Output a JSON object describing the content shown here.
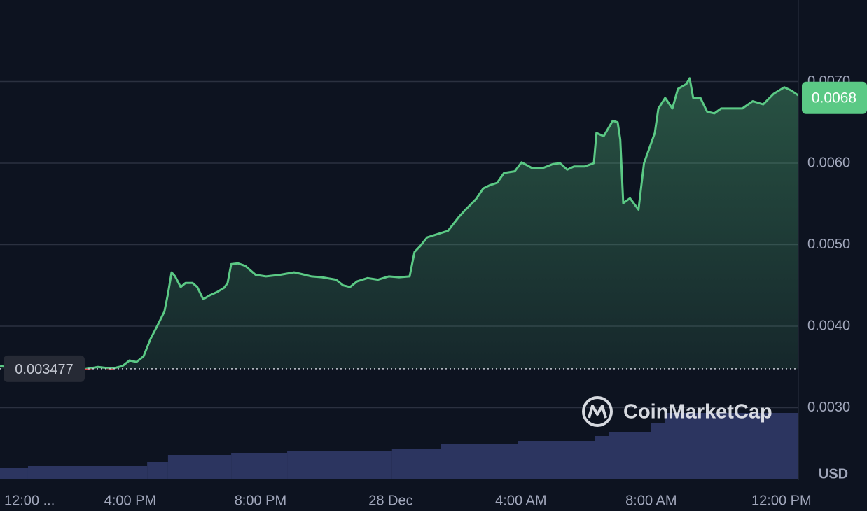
{
  "chart_data": {
    "type": "line",
    "color": "#5bc985",
    "color_down": "#ea3943",
    "x": [
      0,
      0.43,
      0.86,
      1.29,
      1.72,
      2.15,
      2.58,
      3.01,
      3.44,
      3.76,
      3.98,
      4.19,
      4.41,
      4.62,
      4.84,
      5.05,
      5.16,
      5.27,
      5.38,
      5.55,
      5.7,
      5.91,
      6.06,
      6.24,
      6.45,
      6.67,
      6.88,
      6.99,
      7.1,
      7.31,
      7.53,
      7.85,
      8.17,
      8.6,
      9.03,
      9.25,
      9.57,
      9.89,
      10.32,
      10.54,
      10.75,
      10.97,
      11.29,
      11.61,
      11.94,
      12.26,
      12.58,
      12.73,
      12.9,
      13.12,
      13.44,
      13.76,
      14.09,
      14.3,
      14.62,
      14.84,
      15.05,
      15.27,
      15.48,
      15.81,
      16.02,
      16.34,
      16.67,
      16.99,
      17.2,
      17.42,
      17.63,
      17.96,
      18.24,
      18.32,
      18.54,
      18.82,
      18.97,
      19.05,
      19.14,
      19.35,
      19.61,
      19.78,
      20.11,
      20.22,
      20.43,
      20.65,
      20.82,
      21.08,
      21.18,
      21.29,
      21.51,
      21.72,
      21.94,
      22.15,
      22.47,
      22.8,
      23.12,
      23.44,
      23.76,
      24.09,
      24.3,
      24.52
    ],
    "values": [
      0.00351,
      0.00349,
      0.00348,
      0.00348,
      0.00349,
      0.00349,
      0.00347,
      0.0035,
      0.00348,
      0.00351,
      0.00358,
      0.00356,
      0.00363,
      0.00384,
      0.00401,
      0.00418,
      0.0044,
      0.00466,
      0.00461,
      0.00448,
      0.00453,
      0.00453,
      0.00448,
      0.00433,
      0.00438,
      0.00442,
      0.00447,
      0.00453,
      0.00476,
      0.00477,
      0.00474,
      0.00463,
      0.00461,
      0.00463,
      0.00466,
      0.00464,
      0.00461,
      0.0046,
      0.00457,
      0.0045,
      0.00448,
      0.00455,
      0.00459,
      0.00457,
      0.00461,
      0.0046,
      0.00461,
      0.00491,
      0.00498,
      0.00509,
      0.00513,
      0.00517,
      0.00534,
      0.00543,
      0.00556,
      0.00569,
      0.00573,
      0.00576,
      0.00588,
      0.0059,
      0.00601,
      0.00594,
      0.00594,
      0.00599,
      0.006,
      0.00592,
      0.00596,
      0.00596,
      0.006,
      0.00637,
      0.00633,
      0.00652,
      0.0065,
      0.00629,
      0.00551,
      0.00557,
      0.00543,
      0.006,
      0.00637,
      0.00667,
      0.0068,
      0.00667,
      0.00691,
      0.00697,
      0.00704,
      0.0068,
      0.0068,
      0.00663,
      0.00661,
      0.00667,
      0.00667,
      0.00667,
      0.00676,
      0.00672,
      0.00685,
      0.00693,
      0.00689,
      0.00683
    ],
    "xlim": [
      0,
      24.52
    ],
    "ylim": [
      0.00212,
      0.008
    ],
    "xticks": [
      {
        "value": 0,
        "label": "12:00 ..."
      },
      {
        "value": 4,
        "label": "4:00 PM"
      },
      {
        "value": 8,
        "label": "8:00 PM"
      },
      {
        "value": 12,
        "label": "28 Dec"
      },
      {
        "value": 16,
        "label": "4:00 AM"
      },
      {
        "value": 20,
        "label": "8:00 AM"
      },
      {
        "value": 24,
        "label": "12:00 PM"
      }
    ],
    "yticks": [
      {
        "value": 0.003,
        "label": "0.0030"
      },
      {
        "value": 0.004,
        "label": "0.0040"
      },
      {
        "value": 0.005,
        "label": "0.0050"
      },
      {
        "value": 0.006,
        "label": "0.0060"
      },
      {
        "value": 0.007,
        "label": "0.0070"
      }
    ],
    "grid": true,
    "baseline": {
      "value": 0.003477,
      "label": "0.003477"
    },
    "last_price": {
      "value": 0.0068,
      "label": "0.0068"
    },
    "currency": "USD",
    "watermark": "CoinMarketCap",
    "volume": {
      "color": "#2c3560",
      "bins": [
        0,
        0.86,
        4.52,
        5.16,
        7.1,
        8.82,
        12.04,
        13.55,
        15.91,
        18.28,
        18.71,
        20.0,
        20.43,
        24.52
      ],
      "values": [
        17,
        19,
        25,
        35,
        38,
        40,
        43,
        50,
        55,
        62,
        68,
        80,
        95
      ]
    }
  }
}
